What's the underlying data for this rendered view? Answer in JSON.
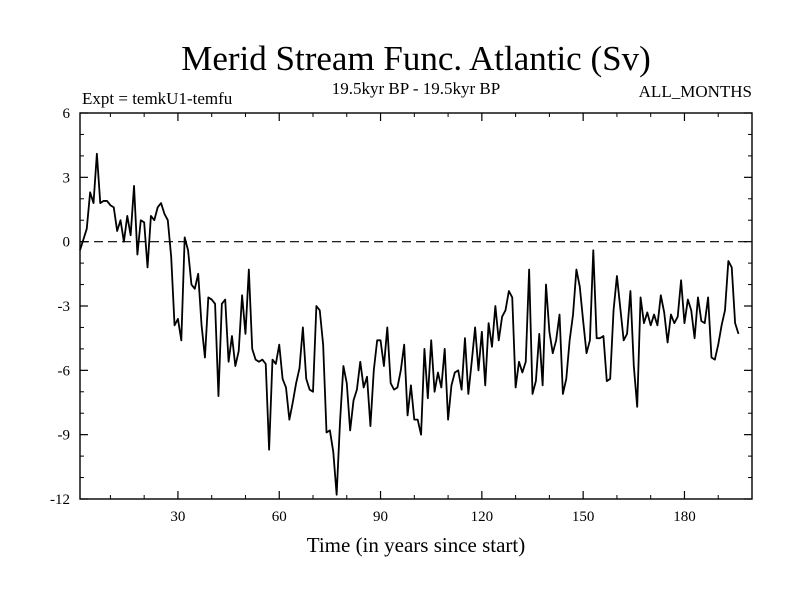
{
  "chart_data": {
    "type": "line",
    "title": "Merid Stream Func. Atlantic (Sv)",
    "subtitle_left": "Expt = temkU1-temfu",
    "subtitle_center": "19.5kyr BP - 19.5kyr BP",
    "subtitle_right": "ALL_MONTHS",
    "xlabel": "Time (in years since start)",
    "ylabel": "",
    "xlim": [
      1,
      200
    ],
    "ylim": [
      -12,
      6
    ],
    "xticks": [
      30,
      60,
      90,
      120,
      150,
      180
    ],
    "yticks": [
      6,
      3,
      0,
      -3,
      -6,
      -9,
      -12
    ],
    "reference_line": 0,
    "series": [
      {
        "name": "Merid Stream Func.",
        "x_start": 1,
        "x_step": 1,
        "values": [
          -0.4,
          0.1,
          0.6,
          2.3,
          1.8,
          4.1,
          1.8,
          1.9,
          1.9,
          1.7,
          1.6,
          0.5,
          1.0,
          0.0,
          1.2,
          0.3,
          2.6,
          -0.6,
          1.0,
          0.9,
          -1.2,
          1.2,
          1.0,
          1.6,
          1.8,
          1.3,
          1.0,
          -0.7,
          -3.9,
          -3.6,
          -4.6,
          0.2,
          -0.4,
          -2.0,
          -2.2,
          -1.5,
          -3.9,
          -5.4,
          -2.6,
          -2.7,
          -2.9,
          -7.2,
          -2.9,
          -2.7,
          -5.6,
          -4.4,
          -5.8,
          -5.1,
          -2.5,
          -4.3,
          -1.3,
          -5.0,
          -5.5,
          -5.6,
          -5.5,
          -5.7,
          -9.7,
          -5.5,
          -5.7,
          -4.8,
          -6.4,
          -6.8,
          -8.3,
          -7.5,
          -6.6,
          -5.9,
          -4.0,
          -6.4,
          -6.9,
          -7.0,
          -3.0,
          -3.2,
          -4.8,
          -8.9,
          -8.8,
          -9.8,
          -11.8,
          -8.4,
          -5.8,
          -6.6,
          -8.8,
          -7.4,
          -6.9,
          -5.6,
          -6.8,
          -6.3,
          -8.6,
          -6.0,
          -4.6,
          -4.6,
          -5.8,
          -4.0,
          -6.6,
          -6.9,
          -6.8,
          -6.0,
          -4.8,
          -8.1,
          -6.7,
          -8.3,
          -8.3,
          -9.0,
          -5.0,
          -7.3,
          -4.6,
          -7.0,
          -6.1,
          -6.8,
          -5.0,
          -8.3,
          -6.7,
          -6.1,
          -6.0,
          -6.9,
          -4.5,
          -7.1,
          -5.6,
          -4.0,
          -6.0,
          -4.2,
          -6.7,
          -3.8,
          -4.9,
          -3.0,
          -4.6,
          -3.5,
          -3.2,
          -2.3,
          -2.6,
          -6.8,
          -5.6,
          -6.1,
          -5.6,
          -1.3,
          -7.1,
          -6.5,
          -4.3,
          -6.7,
          -2.0,
          -4.2,
          -5.2,
          -4.6,
          -3.4,
          -7.1,
          -6.4,
          -4.6,
          -3.4,
          -1.3,
          -2.1,
          -3.7,
          -5.2,
          -4.6,
          -0.4,
          -4.5,
          -4.5,
          -4.4,
          -6.5,
          -6.4,
          -3.2,
          -1.6,
          -3.1,
          -4.6,
          -4.3,
          -2.3,
          -5.8,
          -7.7,
          -2.6,
          -3.8,
          -3.3,
          -3.9,
          -3.4,
          -3.9,
          -2.5,
          -3.3,
          -4.7,
          -3.4,
          -3.8,
          -3.5,
          -1.8,
          -3.8,
          -2.7,
          -3.2,
          -4.5,
          -2.6,
          -3.7,
          -3.8,
          -2.6,
          -5.4,
          -5.5,
          -4.8,
          -3.9,
          -3.2,
          -0.9,
          -1.2,
          -3.8,
          -4.3
        ]
      }
    ]
  }
}
